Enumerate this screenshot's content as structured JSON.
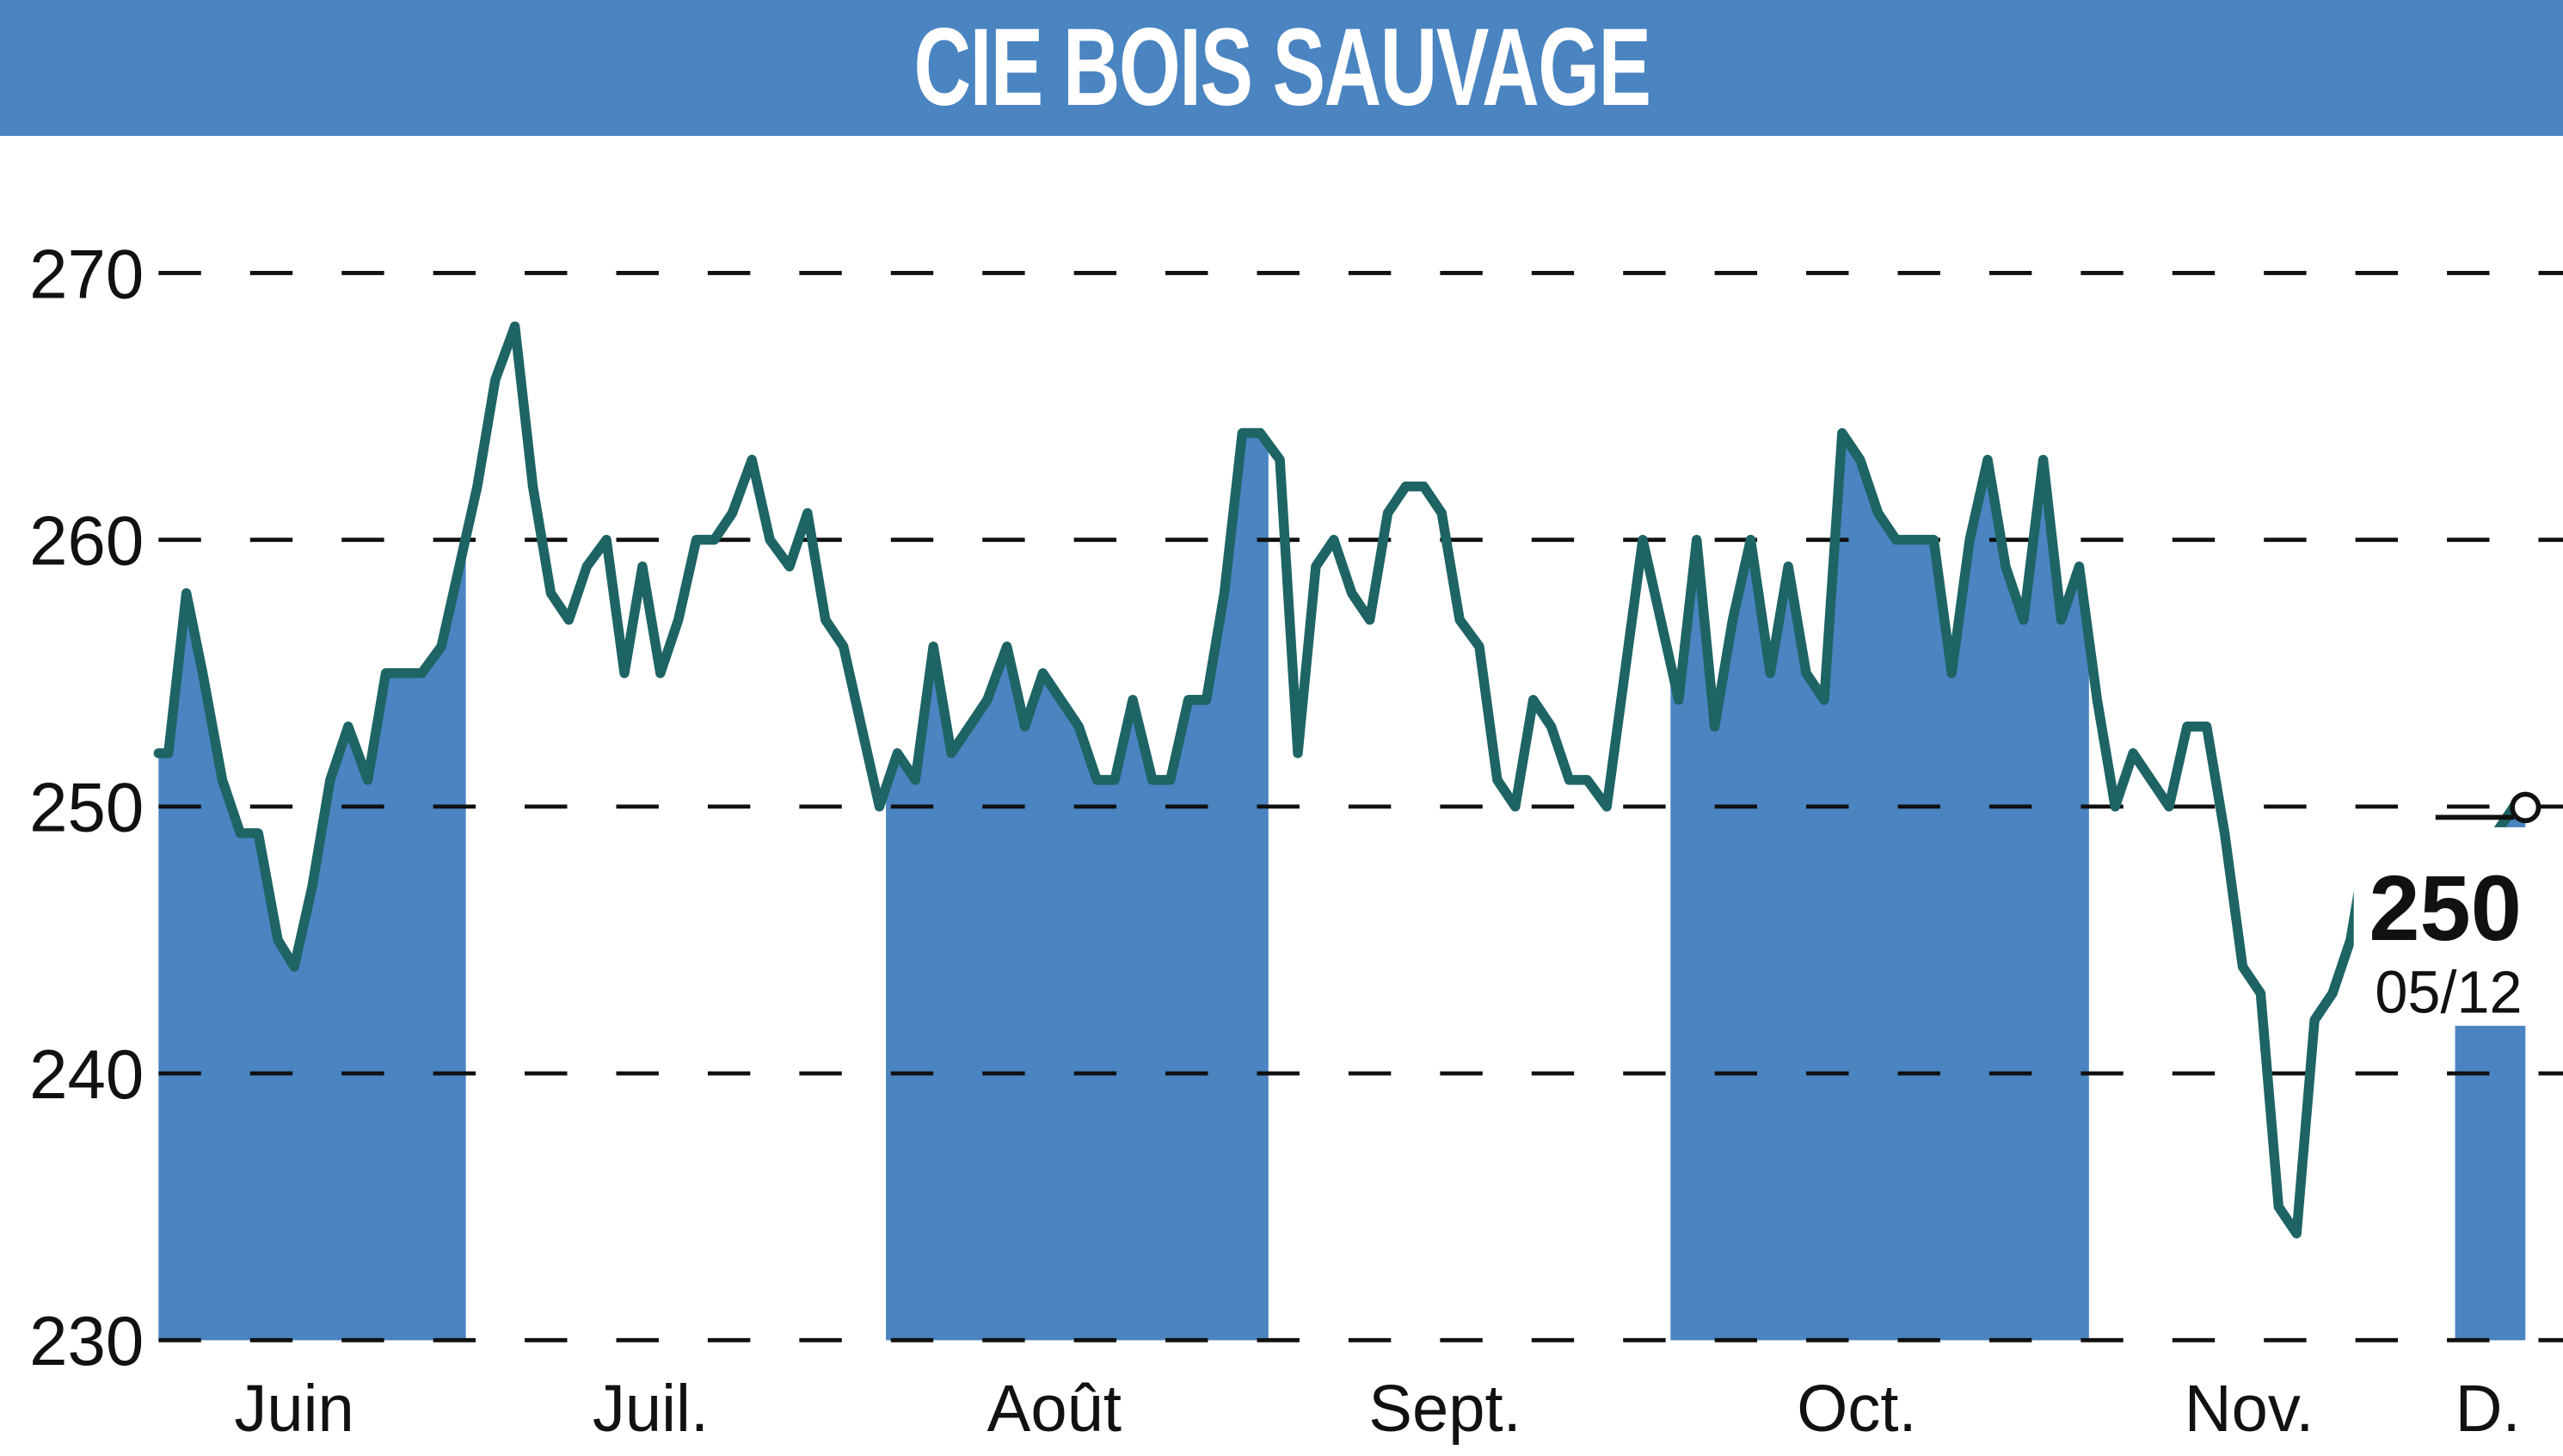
{
  "header": {
    "title": "CIE BOIS SAUVAGE"
  },
  "colors": {
    "title_bg": "#4a84c1",
    "band_fill": "#4a84c1",
    "line": "#1e6464",
    "grid": "#111111",
    "text": "#111111"
  },
  "last": {
    "value": "250",
    "date": "05/12"
  },
  "chart_data": {
    "type": "line",
    "title": "CIE BOIS SAUVAGE",
    "xlabel": "",
    "ylabel": "",
    "ylim": [
      230,
      270
    ],
    "yticks": [
      230,
      240,
      250,
      260,
      270
    ],
    "ytick_labels": [
      "230",
      "240",
      "250",
      "260",
      "270"
    ],
    "grid": "horizontal dashed",
    "months": [
      {
        "label": "Juin",
        "x": 180,
        "shaded": true,
        "x0": 97,
        "x1": 285
      },
      {
        "label": "Juil.",
        "x": 398,
        "shaded": false
      },
      {
        "label": "Août",
        "x": 645,
        "shaded": true,
        "x0": 542,
        "x1": 776
      },
      {
        "label": "Sept.",
        "x": 884,
        "shaded": false
      },
      {
        "label": "Oct.",
        "x": 1136,
        "shaded": true,
        "x0": 1022,
        "x1": 1278
      },
      {
        "label": "Nov.",
        "x": 1376,
        "shaded": false
      },
      {
        "label": "D.",
        "x": 1522,
        "shaded": true,
        "x0": 1502,
        "x1": 1545
      }
    ],
    "series": [
      {
        "name": "CIE BOIS SAUVAGE",
        "x": [
          97,
          103,
          114,
          124,
          136,
          147,
          158,
          170,
          180,
          191,
          202,
          213,
          225,
          236,
          247,
          258,
          270,
          281,
          292,
          303,
          315,
          326,
          337,
          348,
          359,
          371,
          382,
          393,
          404,
          415,
          426,
          437,
          448,
          460,
          471,
          483,
          494,
          505,
          516,
          527,
          538,
          549,
          560,
          571,
          582,
          593,
          604,
          616,
          627,
          638,
          649,
          660,
          671,
          682,
          693,
          705,
          716,
          727,
          738,
          749,
          760,
          771,
          783,
          794,
          805,
          816,
          827,
          838,
          849,
          860,
          871,
          882,
          893,
          905,
          916,
          927,
          938,
          949,
          960,
          971,
          983,
          994,
          1005,
          1016,
          1027,
          1038,
          1049,
          1060,
          1071,
          1083,
          1094,
          1105,
          1116,
          1127,
          1138,
          1149,
          1160,
          1171,
          1183,
          1194,
          1205,
          1216,
          1227,
          1238,
          1250,
          1261,
          1272,
          1283,
          1294,
          1305,
          1316,
          1327,
          1338,
          1350,
          1361,
          1372,
          1383,
          1394,
          1405,
          1416,
          1427,
          1438,
          1449,
          1460,
          1472,
          1483,
          1494,
          1505,
          1516,
          1527,
          1538,
          1545
        ],
        "values": [
          252,
          252,
          258,
          255,
          251,
          249,
          249,
          245,
          244,
          247,
          251,
          253,
          251,
          255,
          255,
          255,
          256,
          259,
          262,
          266,
          268,
          262,
          258,
          257,
          259,
          260,
          255,
          259,
          255,
          257,
          260,
          260,
          261,
          263,
          260,
          259,
          261,
          257,
          256,
          253,
          250,
          252,
          251,
          256,
          252,
          253,
          254,
          256,
          253,
          255,
          254,
          253,
          251,
          251,
          254,
          251,
          251,
          254,
          254,
          258,
          264,
          264,
          263,
          252,
          259,
          260,
          258,
          257,
          261,
          262,
          262,
          261,
          257,
          256,
          251,
          250,
          254,
          253,
          251,
          251,
          250,
          255,
          260,
          257,
          254,
          260,
          253,
          257,
          260,
          255,
          259,
          255,
          254,
          264,
          263,
          261,
          260,
          260,
          260,
          255,
          260,
          263,
          259,
          257,
          263,
          257,
          259,
          254,
          250,
          252,
          251,
          250,
          253,
          253,
          249,
          244,
          243,
          235,
          234,
          242,
          243,
          245,
          249,
          248,
          247,
          248,
          249,
          249,
          249,
          249,
          250,
          250
        ]
      }
    ],
    "annotation": {
      "value": "250",
      "date": "05/12",
      "marker": "open-circle"
    }
  }
}
